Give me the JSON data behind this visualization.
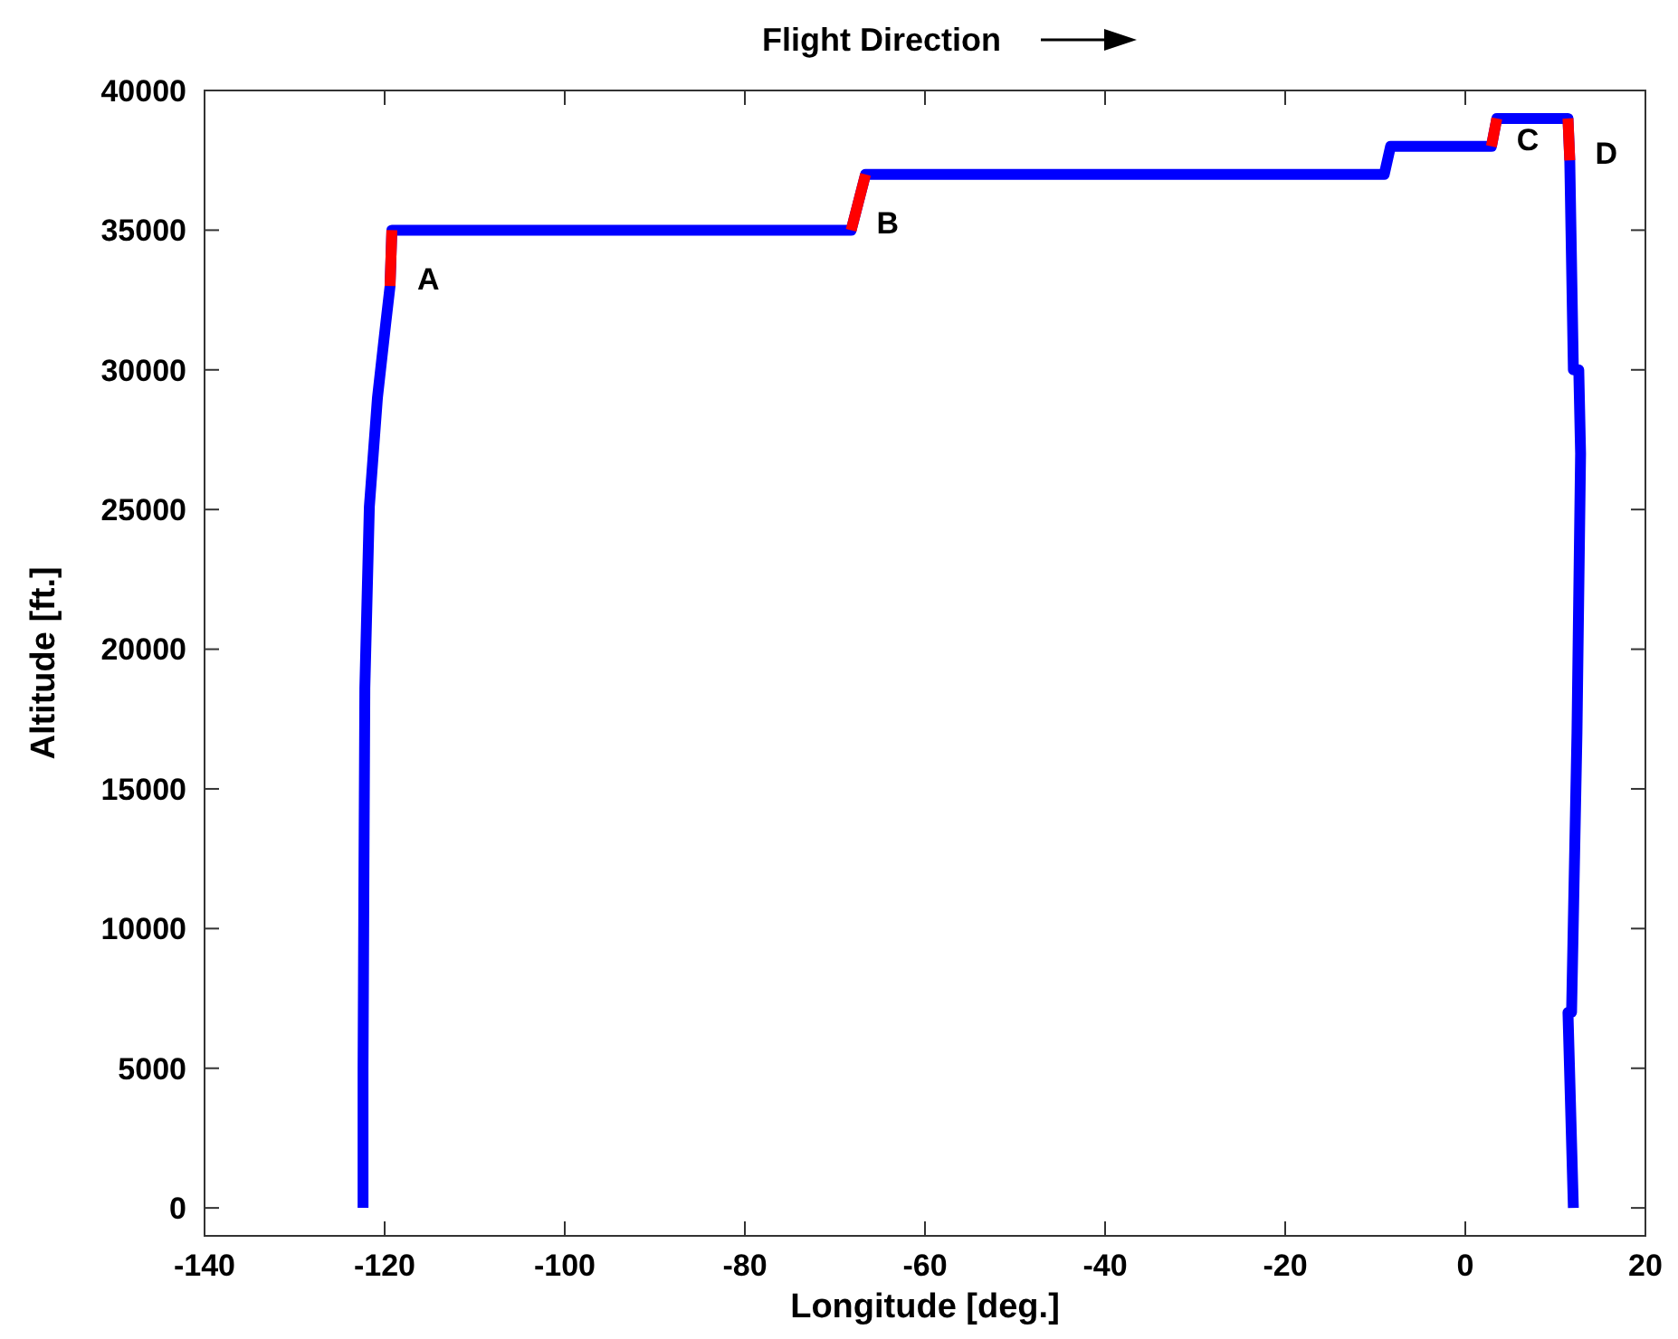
{
  "chart_data": {
    "type": "line",
    "title": "Flight Direction",
    "xlabel": "Longitude [deg.]",
    "ylabel": "Altitude [ft.]",
    "xlim": [
      -140,
      20
    ],
    "ylim": [
      -1000,
      40000
    ],
    "xticks": [
      -140,
      -120,
      -100,
      -80,
      -60,
      -40,
      -20,
      0,
      20
    ],
    "yticks": [
      0,
      5000,
      10000,
      15000,
      20000,
      25000,
      30000,
      35000,
      40000
    ],
    "marker": "none",
    "line_style": "solid",
    "series": [
      {
        "color": "#0000ff",
        "x": [
          -122.4,
          -122.4,
          -122.3,
          -122.2,
          -121.7,
          -120.8,
          -119.9,
          -119.4,
          -119.2,
          -68.2,
          -66.6,
          -9,
          -8.3,
          2.9,
          3.5,
          11.4,
          11.6,
          12.0,
          12.6,
          12.8,
          12.4,
          11.8,
          11.4,
          12.0
        ],
        "values": [
          0,
          5000,
          12000,
          18600,
          25100,
          29000,
          31600,
          33000,
          35000,
          35000,
          37000,
          37000,
          38000,
          38000,
          39000,
          39000,
          37500,
          30000,
          30000,
          27000,
          17000,
          7000,
          7000,
          0
        ]
      },
      {
        "color": "#ff0000",
        "x": [
          -119.4,
          -119.2
        ],
        "values": [
          33000,
          35000
        ]
      },
      {
        "color": "#ff0000",
        "x": [
          -68.2,
          -66.6
        ],
        "values": [
          35000,
          37000
        ]
      },
      {
        "color": "#ff0000",
        "x": [
          2.9,
          3.5
        ],
        "values": [
          38000,
          39000
        ]
      },
      {
        "color": "#ff0000",
        "x": [
          11.4,
          11.6
        ],
        "values": [
          39000,
          37500
        ]
      }
    ],
    "annotations": [
      {
        "text": "A",
        "x": -119.2,
        "y": 33000
      },
      {
        "text": "B",
        "x": -68.2,
        "y": 35000
      },
      {
        "text": "C",
        "x": 2.9,
        "y": 38000
      },
      {
        "text": "D",
        "x": 11.6,
        "y": 37500
      }
    ]
  }
}
